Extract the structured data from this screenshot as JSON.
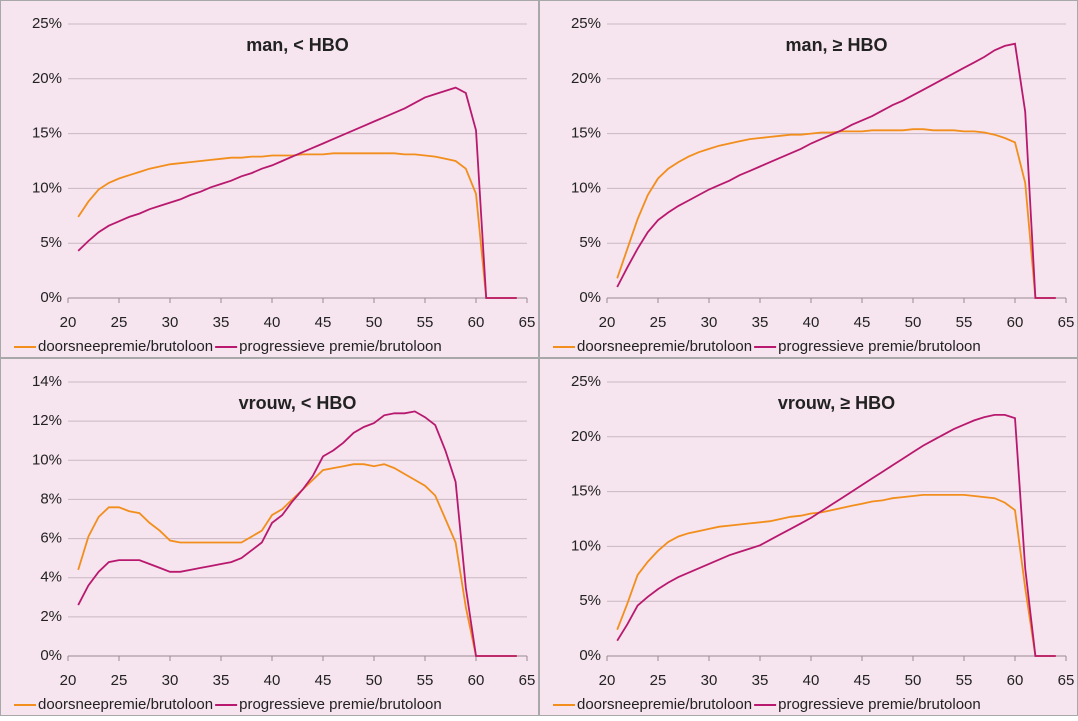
{
  "chart_data": [
    {
      "type": "line",
      "title": "man, < HBO",
      "x": [
        21,
        22,
        23,
        24,
        25,
        26,
        27,
        28,
        29,
        30,
        31,
        32,
        33,
        34,
        35,
        36,
        37,
        38,
        39,
        40,
        41,
        42,
        43,
        44,
        45,
        46,
        47,
        48,
        49,
        50,
        51,
        52,
        53,
        54,
        55,
        56,
        57,
        58,
        59,
        60,
        61,
        62,
        63,
        64
      ],
      "series": [
        {
          "name": "doorsneepremie/brutoloon",
          "color": "#f28e1c",
          "values": [
            7.4,
            8.8,
            9.9,
            10.5,
            10.9,
            11.2,
            11.5,
            11.8,
            12.0,
            12.2,
            12.3,
            12.4,
            12.5,
            12.6,
            12.7,
            12.8,
            12.8,
            12.9,
            12.9,
            13.0,
            13.0,
            13.0,
            13.1,
            13.1,
            13.1,
            13.2,
            13.2,
            13.2,
            13.2,
            13.2,
            13.2,
            13.2,
            13.1,
            13.1,
            13.0,
            12.9,
            12.7,
            12.5,
            11.8,
            9.5,
            0,
            0,
            0,
            0
          ]
        },
        {
          "name": "progressieve premie/brutoloon",
          "color": "#b8196f",
          "values": [
            4.3,
            5.2,
            6.0,
            6.6,
            7.0,
            7.4,
            7.7,
            8.1,
            8.4,
            8.7,
            9.0,
            9.4,
            9.7,
            10.1,
            10.4,
            10.7,
            11.1,
            11.4,
            11.8,
            12.1,
            12.5,
            12.9,
            13.3,
            13.7,
            14.1,
            14.5,
            14.9,
            15.3,
            15.7,
            16.1,
            16.5,
            16.9,
            17.3,
            17.8,
            18.3,
            18.6,
            18.9,
            19.2,
            18.7,
            15.3,
            0,
            0,
            0,
            0
          ]
        }
      ],
      "xlim": [
        20,
        65
      ],
      "xticks": [
        20,
        25,
        30,
        35,
        40,
        45,
        50,
        55,
        60,
        65
      ],
      "ylim": [
        0,
        25
      ],
      "yticks": [
        {
          "value": 0,
          "label": "0%"
        },
        {
          "value": 5,
          "label": "5%"
        },
        {
          "value": 10,
          "label": "10%"
        },
        {
          "value": 15,
          "label": "15%"
        },
        {
          "value": 20,
          "label": "20%"
        },
        {
          "value": 25,
          "label": "25%"
        }
      ],
      "grid": true
    },
    {
      "type": "line",
      "title": "man, ≥ HBO",
      "x": [
        21,
        22,
        23,
        24,
        25,
        26,
        27,
        28,
        29,
        30,
        31,
        32,
        33,
        34,
        35,
        36,
        37,
        38,
        39,
        40,
        41,
        42,
        43,
        44,
        45,
        46,
        47,
        48,
        49,
        50,
        51,
        52,
        53,
        54,
        55,
        56,
        57,
        58,
        59,
        60,
        61,
        62,
        63,
        64
      ],
      "series": [
        {
          "name": "doorsneepremie/brutoloon",
          "color": "#f28e1c",
          "values": [
            1.8,
            4.5,
            7.2,
            9.4,
            10.9,
            11.8,
            12.4,
            12.9,
            13.3,
            13.6,
            13.9,
            14.1,
            14.3,
            14.5,
            14.6,
            14.7,
            14.8,
            14.9,
            14.9,
            15.0,
            15.1,
            15.1,
            15.2,
            15.2,
            15.2,
            15.3,
            15.3,
            15.3,
            15.3,
            15.4,
            15.4,
            15.3,
            15.3,
            15.3,
            15.2,
            15.2,
            15.1,
            14.9,
            14.6,
            14.2,
            10.5,
            0,
            0,
            0
          ]
        },
        {
          "name": "progressieve premie/brutoloon",
          "color": "#b8196f",
          "values": [
            1.0,
            2.8,
            4.5,
            6.0,
            7.1,
            7.8,
            8.4,
            8.9,
            9.4,
            9.9,
            10.3,
            10.7,
            11.2,
            11.6,
            12.0,
            12.4,
            12.8,
            13.2,
            13.6,
            14.1,
            14.5,
            14.9,
            15.3,
            15.8,
            16.2,
            16.6,
            17.1,
            17.6,
            18.0,
            18.5,
            19.0,
            19.5,
            20.0,
            20.5,
            21.0,
            21.5,
            22.0,
            22.6,
            23.0,
            23.2,
            17.0,
            0,
            0,
            0
          ]
        }
      ],
      "xlim": [
        20,
        65
      ],
      "xticks": [
        20,
        25,
        30,
        35,
        40,
        45,
        50,
        55,
        60,
        65
      ],
      "ylim": [
        0,
        25
      ],
      "yticks": [
        {
          "value": 0,
          "label": "0%"
        },
        {
          "value": 5,
          "label": "5%"
        },
        {
          "value": 10,
          "label": "10%"
        },
        {
          "value": 15,
          "label": "15%"
        },
        {
          "value": 20,
          "label": "20%"
        },
        {
          "value": 25,
          "label": "25%"
        }
      ],
      "grid": true
    },
    {
      "type": "line",
      "title": "vrouw, < HBO",
      "x": [
        21,
        22,
        23,
        24,
        25,
        26,
        27,
        28,
        29,
        30,
        31,
        32,
        33,
        34,
        35,
        36,
        37,
        38,
        39,
        40,
        41,
        42,
        43,
        44,
        45,
        46,
        47,
        48,
        49,
        50,
        51,
        52,
        53,
        54,
        55,
        56,
        57,
        58,
        59,
        60,
        61,
        62,
        63,
        64
      ],
      "series": [
        {
          "name": "doorsneepremie/brutoloon",
          "color": "#f28e1c",
          "values": [
            4.4,
            6.1,
            7.1,
            7.6,
            7.6,
            7.4,
            7.3,
            6.8,
            6.4,
            5.9,
            5.8,
            5.8,
            5.8,
            5.8,
            5.8,
            5.8,
            5.8,
            6.1,
            6.4,
            7.2,
            7.5,
            8.0,
            8.5,
            9.0,
            9.5,
            9.6,
            9.7,
            9.8,
            9.8,
            9.7,
            9.8,
            9.6,
            9.3,
            9.0,
            8.7,
            8.2,
            7.0,
            5.8,
            2.5,
            0,
            0,
            0,
            0,
            0
          ]
        },
        {
          "name": "progressieve premie/brutoloon",
          "color": "#b8196f",
          "values": [
            2.6,
            3.6,
            4.3,
            4.8,
            4.9,
            4.9,
            4.9,
            4.7,
            4.5,
            4.3,
            4.3,
            4.4,
            4.5,
            4.6,
            4.7,
            4.8,
            5.0,
            5.4,
            5.8,
            6.8,
            7.2,
            7.9,
            8.5,
            9.2,
            10.2,
            10.5,
            10.9,
            11.4,
            11.7,
            11.9,
            12.3,
            12.4,
            12.4,
            12.5,
            12.2,
            11.8,
            10.5,
            8.9,
            3.5,
            0,
            0,
            0,
            0,
            0
          ]
        }
      ],
      "xlim": [
        20,
        65
      ],
      "xticks": [
        20,
        25,
        30,
        35,
        40,
        45,
        50,
        55,
        60,
        65
      ],
      "ylim": [
        0,
        14
      ],
      "yticks": [
        {
          "value": 0,
          "label": "0%"
        },
        {
          "value": 2,
          "label": "2%"
        },
        {
          "value": 4,
          "label": "4%"
        },
        {
          "value": 6,
          "label": "6%"
        },
        {
          "value": 8,
          "label": "8%"
        },
        {
          "value": 10,
          "label": "10%"
        },
        {
          "value": 12,
          "label": "12%"
        },
        {
          "value": 14,
          "label": "14%"
        }
      ],
      "grid": true
    },
    {
      "type": "line",
      "title": "vrouw, ≥ HBO",
      "x": [
        21,
        22,
        23,
        24,
        25,
        26,
        27,
        28,
        29,
        30,
        31,
        32,
        33,
        34,
        35,
        36,
        37,
        38,
        39,
        40,
        41,
        42,
        43,
        44,
        45,
        46,
        47,
        48,
        49,
        50,
        51,
        52,
        53,
        54,
        55,
        56,
        57,
        58,
        59,
        60,
        61,
        62,
        63,
        64
      ],
      "series": [
        {
          "name": "doorsneepremie/brutoloon",
          "color": "#f28e1c",
          "values": [
            2.4,
            4.8,
            7.4,
            8.6,
            9.6,
            10.4,
            10.9,
            11.2,
            11.4,
            11.6,
            11.8,
            11.9,
            12.0,
            12.1,
            12.2,
            12.3,
            12.5,
            12.7,
            12.8,
            13.0,
            13.1,
            13.3,
            13.5,
            13.7,
            13.9,
            14.1,
            14.2,
            14.4,
            14.5,
            14.6,
            14.7,
            14.7,
            14.7,
            14.7,
            14.7,
            14.6,
            14.5,
            14.4,
            14.0,
            13.3,
            6.2,
            0,
            0,
            0
          ]
        },
        {
          "name": "progressieve premie/brutoloon",
          "color": "#b8196f",
          "values": [
            1.4,
            2.9,
            4.6,
            5.4,
            6.1,
            6.7,
            7.2,
            7.6,
            8.0,
            8.4,
            8.8,
            9.2,
            9.5,
            9.8,
            10.1,
            10.6,
            11.1,
            11.6,
            12.1,
            12.6,
            13.2,
            13.8,
            14.4,
            15.0,
            15.6,
            16.2,
            16.8,
            17.4,
            18.0,
            18.6,
            19.2,
            19.7,
            20.2,
            20.7,
            21.1,
            21.5,
            21.8,
            22.0,
            22.0,
            21.7,
            8.0,
            0,
            0,
            0
          ]
        }
      ],
      "xlim": [
        20,
        65
      ],
      "xticks": [
        20,
        25,
        30,
        35,
        40,
        45,
        50,
        55,
        60,
        65
      ],
      "ylim": [
        0,
        25
      ],
      "yticks": [
        {
          "value": 0,
          "label": "0%"
        },
        {
          "value": 5,
          "label": "5%"
        },
        {
          "value": 10,
          "label": "10%"
        },
        {
          "value": 15,
          "label": "15%"
        },
        {
          "value": 20,
          "label": "20%"
        },
        {
          "value": 25,
          "label": "25%"
        }
      ],
      "grid": true
    }
  ]
}
